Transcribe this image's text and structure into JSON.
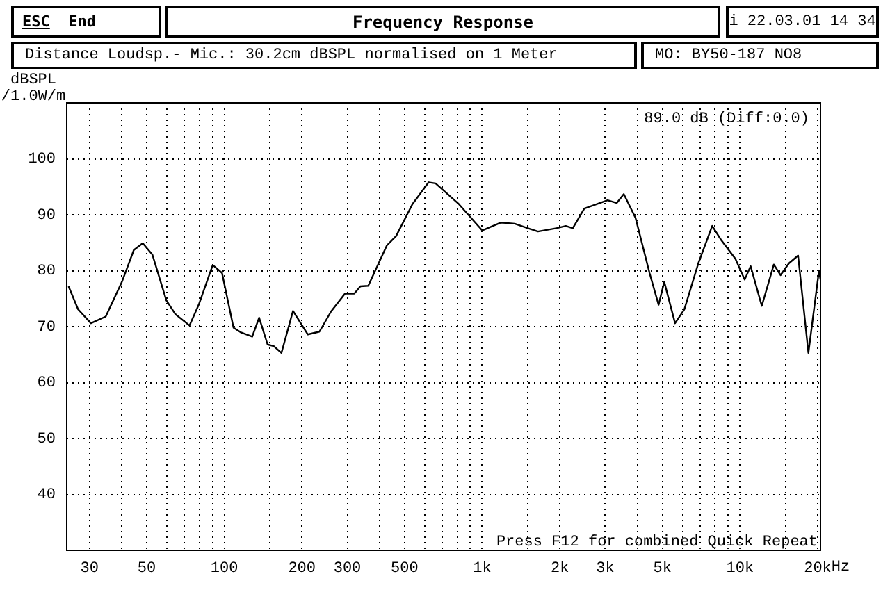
{
  "chart_data": {
    "type": "line",
    "title": "Frequency Response",
    "subtitle": "Distance Loudsp.- Mic.: 30.2cm dBSPL normalised on 1 Meter",
    "ylabel": "dBSPL /1.0W/m",
    "annotations": [
      "ESC End",
      "i 22.03.01 14 34",
      "MO: BY50-187 NO8",
      "89.0 dB (Diff:0.0)",
      "Press F12 for combined Quick Repeat"
    ],
    "log": "x",
    "grid": true,
    "legend": false,
    "marker": "none",
    "line_style": "solid",
    "xlim": [
      24.5,
      20500
    ],
    "ylim": [
      30,
      110
    ],
    "xticks": [
      {
        "value": 30,
        "label": "30"
      },
      {
        "value": 40,
        "label": null
      },
      {
        "value": 50,
        "label": "50"
      },
      {
        "value": 60,
        "label": null
      },
      {
        "value": 70,
        "label": null
      },
      {
        "value": 80,
        "label": null
      },
      {
        "value": 90,
        "label": null
      },
      {
        "value": 100,
        "label": "100"
      },
      {
        "value": 150,
        "label": null
      },
      {
        "value": 200,
        "label": "200"
      },
      {
        "value": 300,
        "label": "300"
      },
      {
        "value": 400,
        "label": null
      },
      {
        "value": 500,
        "label": "500"
      },
      {
        "value": 600,
        "label": null
      },
      {
        "value": 700,
        "label": null
      },
      {
        "value": 800,
        "label": null
      },
      {
        "value": 900,
        "label": null
      },
      {
        "value": 1000,
        "label": "1k"
      },
      {
        "value": 1500,
        "label": null
      },
      {
        "value": 2000,
        "label": "2k"
      },
      {
        "value": 3000,
        "label": "3k"
      },
      {
        "value": 4000,
        "label": null
      },
      {
        "value": 5000,
        "label": "5k"
      },
      {
        "value": 6000,
        "label": null
      },
      {
        "value": 7000,
        "label": null
      },
      {
        "value": 8000,
        "label": null
      },
      {
        "value": 9000,
        "label": null
      },
      {
        "value": 10000,
        "label": "10k"
      },
      {
        "value": 15000,
        "label": null
      },
      {
        "value": 20000,
        "label": "20k"
      }
    ],
    "xlabel": "Hz",
    "yticks": [
      40,
      50,
      60,
      70,
      80,
      90,
      100
    ],
    "x": [
      24.9,
      27.1,
      30.4,
      34.7,
      40.1,
      44.6,
      48.3,
      52.6,
      59.6,
      64.7,
      73.3,
      79.6,
      90.2,
      98,
      108.6,
      115.6,
      128.3,
      136.5,
      147.2,
      155.6,
      166.6,
      184.7,
      210.9,
      233.9,
      259.4,
      293.8,
      319.3,
      337.2,
      361.7,
      426.9,
      463.9,
      536.6,
      620,
      659.7,
      812.2,
      1000,
      1180,
      1337,
      1645,
      1941,
      2110,
      2245,
      2489,
      3064,
      3327,
      3541,
      3935,
      4456,
      4831,
      5082,
      5597,
      6081,
      6887,
      7798,
      8472,
      9594,
      10420,
      10990,
      12140,
      13520,
      14350,
      15460,
      16790,
      18410,
      20230,
      20500
    ],
    "series": [
      {
        "color": "#000000",
        "values": [
          77.2,
          73.1,
          70.6,
          71.8,
          78.0,
          83.7,
          84.9,
          82.9,
          74.7,
          72.2,
          70.2,
          73.9,
          81.0,
          79.6,
          69.8,
          69.0,
          68.2,
          71.6,
          66.8,
          66.5,
          65.3,
          72.8,
          68.6,
          69.1,
          72.7,
          75.9,
          75.9,
          77.2,
          77.3,
          84.5,
          86.2,
          91.9,
          95.8,
          95.6,
          91.9,
          87.2,
          88.6,
          88.4,
          87.0,
          87.6,
          88.0,
          87.6,
          91.1,
          92.6,
          92.1,
          93.7,
          89.4,
          79.6,
          73.9,
          78.0,
          70.6,
          73.1,
          81.3,
          88.0,
          85.4,
          82.1,
          78.4,
          80.8,
          73.7,
          81.1,
          79.2,
          81.3,
          82.7,
          65.3,
          80.0,
          78.4
        ]
      }
    ]
  }
}
